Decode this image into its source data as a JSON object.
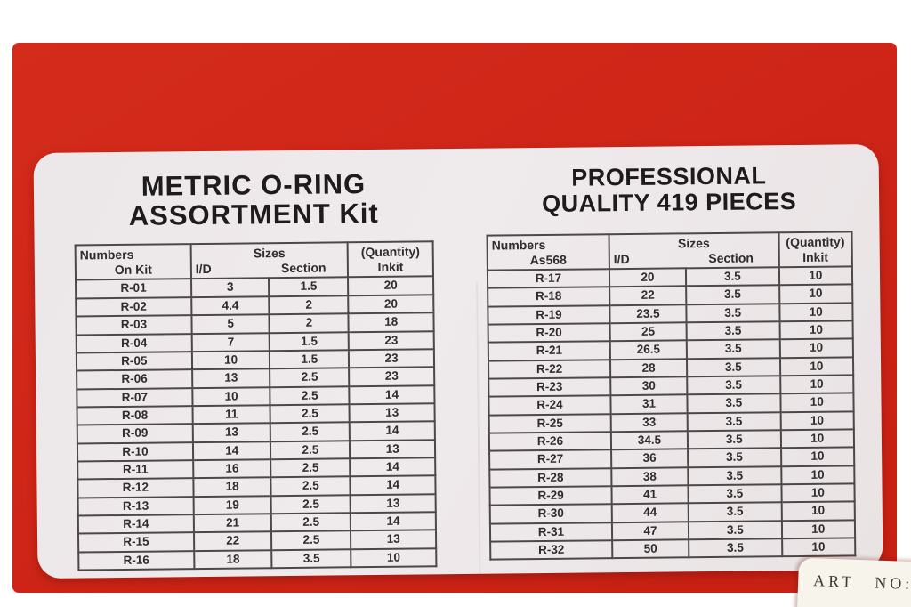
{
  "colors": {
    "box_red": "#cd2417",
    "label_background": "#ece7e8",
    "table_border": "#4d4847",
    "text": "#2e2c2c",
    "sticker_background": "#f7f4ec"
  },
  "left_section": {
    "title_line1": "METRIC O-RING",
    "title_line2": "ASSORTMENT Kit",
    "table": {
      "header": {
        "numbers_line1": "Numbers",
        "numbers_line2": "On Kit",
        "sizes": "Sizes",
        "id": "I/D",
        "section": "Section",
        "quantity_line1": "(Quantity)",
        "quantity_line2": "Inkit"
      },
      "rows": [
        [
          "R-01",
          "3",
          "1.5",
          "20"
        ],
        [
          "R-02",
          "4.4",
          "2",
          "20"
        ],
        [
          "R-03",
          "5",
          "2",
          "18"
        ],
        [
          "R-04",
          "7",
          "1.5",
          "23"
        ],
        [
          "R-05",
          "10",
          "1.5",
          "23"
        ],
        [
          "R-06",
          "13",
          "2.5",
          "23"
        ],
        [
          "R-07",
          "10",
          "2.5",
          "14"
        ],
        [
          "R-08",
          "11",
          "2.5",
          "13"
        ],
        [
          "R-09",
          "13",
          "2.5",
          "14"
        ],
        [
          "R-10",
          "14",
          "2.5",
          "13"
        ],
        [
          "R-11",
          "16",
          "2.5",
          "14"
        ],
        [
          "R-12",
          "18",
          "2.5",
          "14"
        ],
        [
          "R-13",
          "19",
          "2.5",
          "13"
        ],
        [
          "R-14",
          "21",
          "2.5",
          "14"
        ],
        [
          "R-15",
          "22",
          "2.5",
          "13"
        ],
        [
          "R-16",
          "18",
          "3.5",
          "10"
        ]
      ]
    }
  },
  "right_section": {
    "title_line1": "PROFESSIONAL",
    "title_line2": "QUALITY 419 PIECES",
    "table": {
      "header": {
        "numbers_line1": "Numbers",
        "numbers_line2": "As568",
        "sizes": "Sizes",
        "id": "I/D",
        "section": "Section",
        "quantity_line1": "(Quantity)",
        "quantity_line2": "Inkit"
      },
      "rows": [
        [
          "R-17",
          "20",
          "3.5",
          "10"
        ],
        [
          "R-18",
          "22",
          "3.5",
          "10"
        ],
        [
          "R-19",
          "23.5",
          "3.5",
          "10"
        ],
        [
          "R-20",
          "25",
          "3.5",
          "10"
        ],
        [
          "R-21",
          "26.5",
          "3.5",
          "10"
        ],
        [
          "R-22",
          "28",
          "3.5",
          "10"
        ],
        [
          "R-23",
          "30",
          "3.5",
          "10"
        ],
        [
          "R-24",
          "31",
          "3.5",
          "10"
        ],
        [
          "R-25",
          "33",
          "3.5",
          "10"
        ],
        [
          "R-26",
          "34.5",
          "3.5",
          "10"
        ],
        [
          "R-27",
          "36",
          "3.5",
          "10"
        ],
        [
          "R-28",
          "38",
          "3.5",
          "10"
        ],
        [
          "R-29",
          "41",
          "3.5",
          "10"
        ],
        [
          "R-30",
          "44",
          "3.5",
          "10"
        ],
        [
          "R-31",
          "47",
          "3.5",
          "10"
        ],
        [
          "R-32",
          "50",
          "3.5",
          "10"
        ]
      ]
    }
  },
  "sticker": {
    "text": "ART NO:"
  }
}
